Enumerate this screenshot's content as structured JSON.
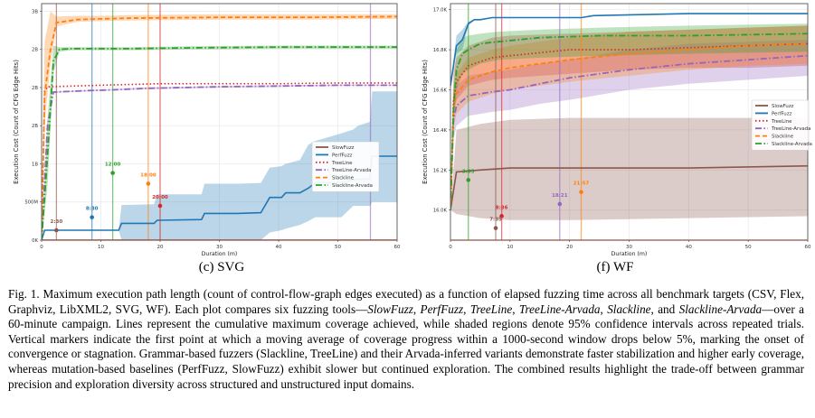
{
  "figure": {
    "caption_parts": [
      {
        "text": "Fig. 1.  Maximum execution path length (count of control-flow-graph edges executed) as a function of elapsed fuzzing time across all benchmark targets (CSV, Flex, Graphviz, LibXML2, SVG, WF). Each plot compares six fuzzing tools—",
        "italic": false
      },
      {
        "text": "SlowFuzz",
        "italic": true
      },
      {
        "text": ", ",
        "italic": false
      },
      {
        "text": "PerfFuzz",
        "italic": true
      },
      {
        "text": ", ",
        "italic": false
      },
      {
        "text": "TreeLine",
        "italic": true
      },
      {
        "text": ", ",
        "italic": false
      },
      {
        "text": "TreeLine-Arvada",
        "italic": true
      },
      {
        "text": ", ",
        "italic": false
      },
      {
        "text": "Slackline",
        "italic": true
      },
      {
        "text": ", and ",
        "italic": false
      },
      {
        "text": "Slackline-Arvada",
        "italic": true
      },
      {
        "text": "—over a 60-minute campaign. Lines represent the cumulative maximum coverage achieved, while shaded regions denote 95% confidence intervals across repeated trials. Vertical markers indicate the first point at which a moving average of coverage progress within a 1000-second window drops below 5%, marking the onset of convergence or stagnation. Grammar-based fuzzers (Slackline, TreeLine) and their Arvada-inferred variants demonstrate faster stabilization and higher early coverage, whereas mutation-based baselines (PerfFuzz, SlowFuzz) exhibit slower but continued exploration. The combined results highlight the trade-off between grammar precision and exploration diversity across structured and unstructured input domains.",
        "italic": false
      }
    ]
  },
  "chart_data": [
    {
      "type": "line",
      "panel_label": "(c) SVG",
      "xlabel": "Duration (m)",
      "ylabel": "Execution Cost (Count of CFG Edge Hits)",
      "xlim": [
        0,
        60
      ],
      "ylim": [
        0,
        3.1
      ],
      "y_unit": "billions",
      "xticks": [
        0,
        10,
        20,
        30,
        40,
        50,
        60
      ],
      "yticks": [
        0,
        0.5,
        1.0,
        1.5,
        2.0,
        2.5,
        3.0
      ],
      "ytick_labels": [
        "0K",
        "500M",
        "1B",
        "2B",
        "2B",
        "2B",
        "3B"
      ],
      "grid": true,
      "legend_position": "center-right",
      "series": [
        {
          "name": "SlowFuzz",
          "color": "#8c564b",
          "style": "solid",
          "x": [
            0,
            0.5,
            60
          ],
          "y": [
            0.0,
            0.0,
            0.0
          ],
          "ci_low": [
            0,
            0,
            0
          ],
          "ci_high": [
            0,
            0,
            0
          ]
        },
        {
          "name": "PerfFuzz",
          "color": "#1f77b4",
          "style": "solid",
          "x": [
            0,
            0.5,
            13,
            13.5,
            19,
            19.5,
            27,
            27.5,
            33,
            37,
            38.5,
            40.5,
            41.2,
            43.6,
            45,
            46.2,
            50.6,
            52.6,
            53.4,
            55.4,
            55.8,
            60
          ],
          "y": [
            0.0,
            0.13,
            0.13,
            0.22,
            0.22,
            0.26,
            0.27,
            0.35,
            0.35,
            0.36,
            0.56,
            0.56,
            0.62,
            0.62,
            0.68,
            0.75,
            0.75,
            0.79,
            0.8,
            0.8,
            1.1,
            1.1
          ],
          "ci_low": [
            0.0,
            0.13,
            0.13,
            0.0,
            0.0,
            0.0,
            0.0,
            0.0,
            0.0,
            0.0,
            0.1,
            0.13,
            0.15,
            0.2,
            0.25,
            0.3,
            0.3,
            0.45,
            0.45,
            0.45,
            0.5,
            0.5
          ],
          "ci_high": [
            0.0,
            0.13,
            0.13,
            0.46,
            0.47,
            0.6,
            0.6,
            0.74,
            0.74,
            0.75,
            0.95,
            0.97,
            1.0,
            1.05,
            1.25,
            1.3,
            1.4,
            1.45,
            1.5,
            1.55,
            1.95,
            1.95
          ]
        },
        {
          "name": "TreeLine",
          "color": "#d62728",
          "style": "dotted",
          "x": [
            0,
            0.5,
            1,
            10,
            20,
            30,
            40,
            50,
            60
          ],
          "y": [
            0.0,
            1.95,
            2.01,
            2.03,
            2.05,
            2.05,
            2.05,
            2.06,
            2.06
          ],
          "ci_low": [
            0,
            1.95,
            2.01,
            2.03,
            2.05,
            2.05,
            2.05,
            2.06,
            2.06
          ],
          "ci_high": [
            0,
            1.95,
            2.01,
            2.03,
            2.05,
            2.05,
            2.05,
            2.06,
            2.06
          ]
        },
        {
          "name": "TreeLine-Arvada",
          "color": "#9467bd",
          "style": "dashdot",
          "x": [
            0,
            1,
            2,
            8,
            12,
            18,
            30,
            40,
            50,
            60
          ],
          "y": [
            0.0,
            1.5,
            1.94,
            1.96,
            1.97,
            1.99,
            2.01,
            2.02,
            2.03,
            2.03
          ],
          "ci_low": [
            0,
            1.5,
            1.93,
            1.95,
            1.96,
            1.98,
            2.0,
            2.01,
            2.02,
            2.02
          ],
          "ci_high": [
            0,
            1.5,
            1.95,
            1.97,
            1.98,
            2.0,
            2.02,
            2.03,
            2.04,
            2.04
          ]
        },
        {
          "name": "Slackline",
          "color": "#ff7f0e",
          "style": "dashed",
          "x": [
            0,
            0.5,
            1.5,
            2.5,
            6,
            10,
            15,
            30,
            45,
            60
          ],
          "y": [
            0.0,
            1.9,
            2.5,
            2.85,
            2.89,
            2.9,
            2.91,
            2.92,
            2.92,
            2.93
          ],
          "ci_low": [
            0,
            1.5,
            2.3,
            2.8,
            2.86,
            2.87,
            2.88,
            2.89,
            2.89,
            2.9
          ],
          "ci_high": [
            0,
            2.6,
            3.0,
            2.93,
            2.94,
            2.94,
            2.95,
            2.96,
            2.96,
            2.96
          ]
        },
        {
          "name": "Slackline-Arvada",
          "color": "#2ca02c",
          "style": "dashdot",
          "x": [
            0,
            1,
            2,
            3,
            5,
            15,
            25,
            40,
            60
          ],
          "y": [
            0.0,
            1.1,
            2.35,
            2.5,
            2.51,
            2.51,
            2.52,
            2.53,
            2.53
          ],
          "ci_low": [
            0,
            0.7,
            2.2,
            2.47,
            2.49,
            2.49,
            2.5,
            2.51,
            2.51
          ],
          "ci_high": [
            0,
            1.6,
            2.55,
            2.53,
            2.53,
            2.53,
            2.54,
            2.55,
            2.55
          ]
        }
      ],
      "markers": [
        {
          "tool": "SlowFuzz",
          "color": "#8c564b",
          "x": 2.5,
          "y": 0.13,
          "label": "2:30"
        },
        {
          "tool": "PerfFuzz",
          "color": "#1f77b4",
          "x": 8.5,
          "y": 0.3,
          "label": "8:30"
        },
        {
          "tool": "Slackline-Arvada",
          "color": "#2ca02c",
          "x": 12.0,
          "y": 0.88,
          "label": "12:00"
        },
        {
          "tool": "Slackline",
          "color": "#ff7f0e",
          "x": 18.0,
          "y": 0.74,
          "label": "18:00"
        },
        {
          "tool": "TreeLine",
          "color": "#d62728",
          "x": 20.0,
          "y": 0.45,
          "label": "20:00"
        },
        {
          "tool": "TreeLine-Arvada",
          "color": "#9467bd",
          "x": 55.5,
          "y": null,
          "label": ""
        }
      ]
    },
    {
      "type": "line",
      "panel_label": "(f) WF",
      "xlabel": "Duration (m)",
      "ylabel": "Execution Cost (Count of CFG Edge Hits)",
      "xlim": [
        0,
        60
      ],
      "ylim": [
        15.85,
        17.03
      ],
      "y_unit": "thousands",
      "xticks": [
        0,
        10,
        20,
        30,
        40,
        50,
        60
      ],
      "yticks": [
        16.0,
        16.2,
        16.4,
        16.6,
        16.8,
        17.0
      ],
      "ytick_labels": [
        "16.0K",
        "16.2K",
        "16.4K",
        "16.6K",
        "16.8K",
        "17.0K"
      ],
      "grid": true,
      "legend_position": "center-right",
      "series": [
        {
          "name": "SlowFuzz",
          "color": "#8c564b",
          "style": "solid",
          "x": [
            0,
            1,
            5,
            10,
            20,
            40,
            60
          ],
          "y": [
            16.0,
            16.19,
            16.2,
            16.21,
            16.21,
            16.21,
            16.22
          ],
          "ci_low": [
            16.0,
            15.98,
            15.96,
            15.95,
            15.95,
            15.96,
            15.97
          ],
          "ci_high": [
            16.0,
            16.4,
            16.43,
            16.45,
            16.46,
            16.46,
            16.46
          ]
        },
        {
          "name": "PerfFuzz",
          "color": "#1f77b4",
          "style": "solid",
          "x": [
            0,
            1,
            2,
            3,
            4,
            5,
            7,
            10,
            18,
            22,
            24,
            40,
            60
          ],
          "y": [
            16.62,
            16.82,
            16.85,
            16.93,
            16.95,
            16.95,
            16.96,
            16.96,
            16.96,
            16.96,
            16.97,
            16.98,
            16.98
          ],
          "ci_low": [
            16.62,
            16.78,
            16.8,
            16.92,
            16.95,
            16.95,
            16.96,
            16.96,
            16.96,
            16.96,
            16.97,
            16.98,
            16.98
          ],
          "ci_high": [
            16.62,
            16.87,
            16.9,
            16.94,
            16.95,
            16.95,
            16.96,
            16.96,
            16.96,
            16.96,
            16.97,
            16.98,
            16.98
          ]
        },
        {
          "name": "TreeLine",
          "color": "#d62728",
          "style": "dotted",
          "x": [
            0,
            0.5,
            1,
            3,
            7,
            10,
            20,
            30,
            40,
            50,
            60
          ],
          "y": [
            16.0,
            16.55,
            16.64,
            16.72,
            16.76,
            16.77,
            16.8,
            16.8,
            16.81,
            16.82,
            16.83
          ],
          "ci_low": [
            16.0,
            16.48,
            16.55,
            16.62,
            16.65,
            16.66,
            16.68,
            16.7,
            16.71,
            16.71,
            16.72
          ],
          "ci_high": [
            16.0,
            16.7,
            16.76,
            16.82,
            16.86,
            16.87,
            16.88,
            16.89,
            16.9,
            16.91,
            16.92
          ]
        },
        {
          "name": "TreeLine-Arvada",
          "color": "#9467bd",
          "style": "dashdot",
          "x": [
            0,
            0.5,
            1,
            3,
            7,
            10,
            15,
            20,
            30,
            40,
            50,
            60
          ],
          "y": [
            16.0,
            16.45,
            16.52,
            16.57,
            16.59,
            16.6,
            16.63,
            16.66,
            16.7,
            16.73,
            16.75,
            16.77
          ],
          "ci_low": [
            16.0,
            16.35,
            16.42,
            16.47,
            16.49,
            16.5,
            16.53,
            16.55,
            16.6,
            16.63,
            16.65,
            16.67
          ],
          "ci_high": [
            16.0,
            16.55,
            16.62,
            16.67,
            16.69,
            16.7,
            16.73,
            16.75,
            16.8,
            16.83,
            16.84,
            16.85
          ]
        },
        {
          "name": "Slackline",
          "color": "#ff7f0e",
          "style": "dashed",
          "x": [
            0,
            0.5,
            1,
            3,
            7,
            10,
            20,
            30,
            40,
            50,
            60
          ],
          "y": [
            16.0,
            16.5,
            16.58,
            16.65,
            16.69,
            16.71,
            16.75,
            16.78,
            16.8,
            16.82,
            16.83
          ],
          "ci_low": [
            16.0,
            16.4,
            16.48,
            16.54,
            16.58,
            16.6,
            16.64,
            16.67,
            16.7,
            16.72,
            16.73
          ],
          "ci_high": [
            16.0,
            16.6,
            16.68,
            16.76,
            16.8,
            16.82,
            16.86,
            16.89,
            16.9,
            16.91,
            16.92
          ]
        },
        {
          "name": "Slackline-Arvada",
          "color": "#2ca02c",
          "style": "dashdot",
          "x": [
            0,
            0.5,
            1,
            2,
            3,
            5,
            8,
            15,
            25,
            40,
            60
          ],
          "y": [
            16.0,
            16.5,
            16.7,
            16.78,
            16.8,
            16.83,
            16.84,
            16.86,
            16.87,
            16.87,
            16.88
          ],
          "ci_low": [
            16.0,
            16.4,
            16.6,
            16.68,
            16.7,
            16.73,
            16.75,
            16.76,
            16.77,
            16.78,
            16.79
          ],
          "ci_high": [
            16.0,
            16.6,
            16.8,
            16.86,
            16.87,
            16.88,
            16.89,
            16.9,
            16.91,
            16.92,
            16.93
          ]
        }
      ],
      "markers": [
        {
          "tool": "Slackline-Arvada",
          "color": "#2ca02c",
          "x": 3.0,
          "y": 16.15,
          "label": "3:03"
        },
        {
          "tool": "SlowFuzz",
          "color": "#8c564b",
          "x": 7.6,
          "y": 15.91,
          "label": "7:35"
        },
        {
          "tool": "TreeLine",
          "color": "#d62728",
          "x": 8.6,
          "y": 15.97,
          "label": "8:36"
        },
        {
          "tool": "TreeLine-Arvada",
          "color": "#9467bd",
          "x": 18.35,
          "y": 16.03,
          "label": "18:21"
        },
        {
          "tool": "Slackline",
          "color": "#ff7f0e",
          "x": 21.95,
          "y": 16.09,
          "label": "21:57"
        }
      ]
    }
  ]
}
